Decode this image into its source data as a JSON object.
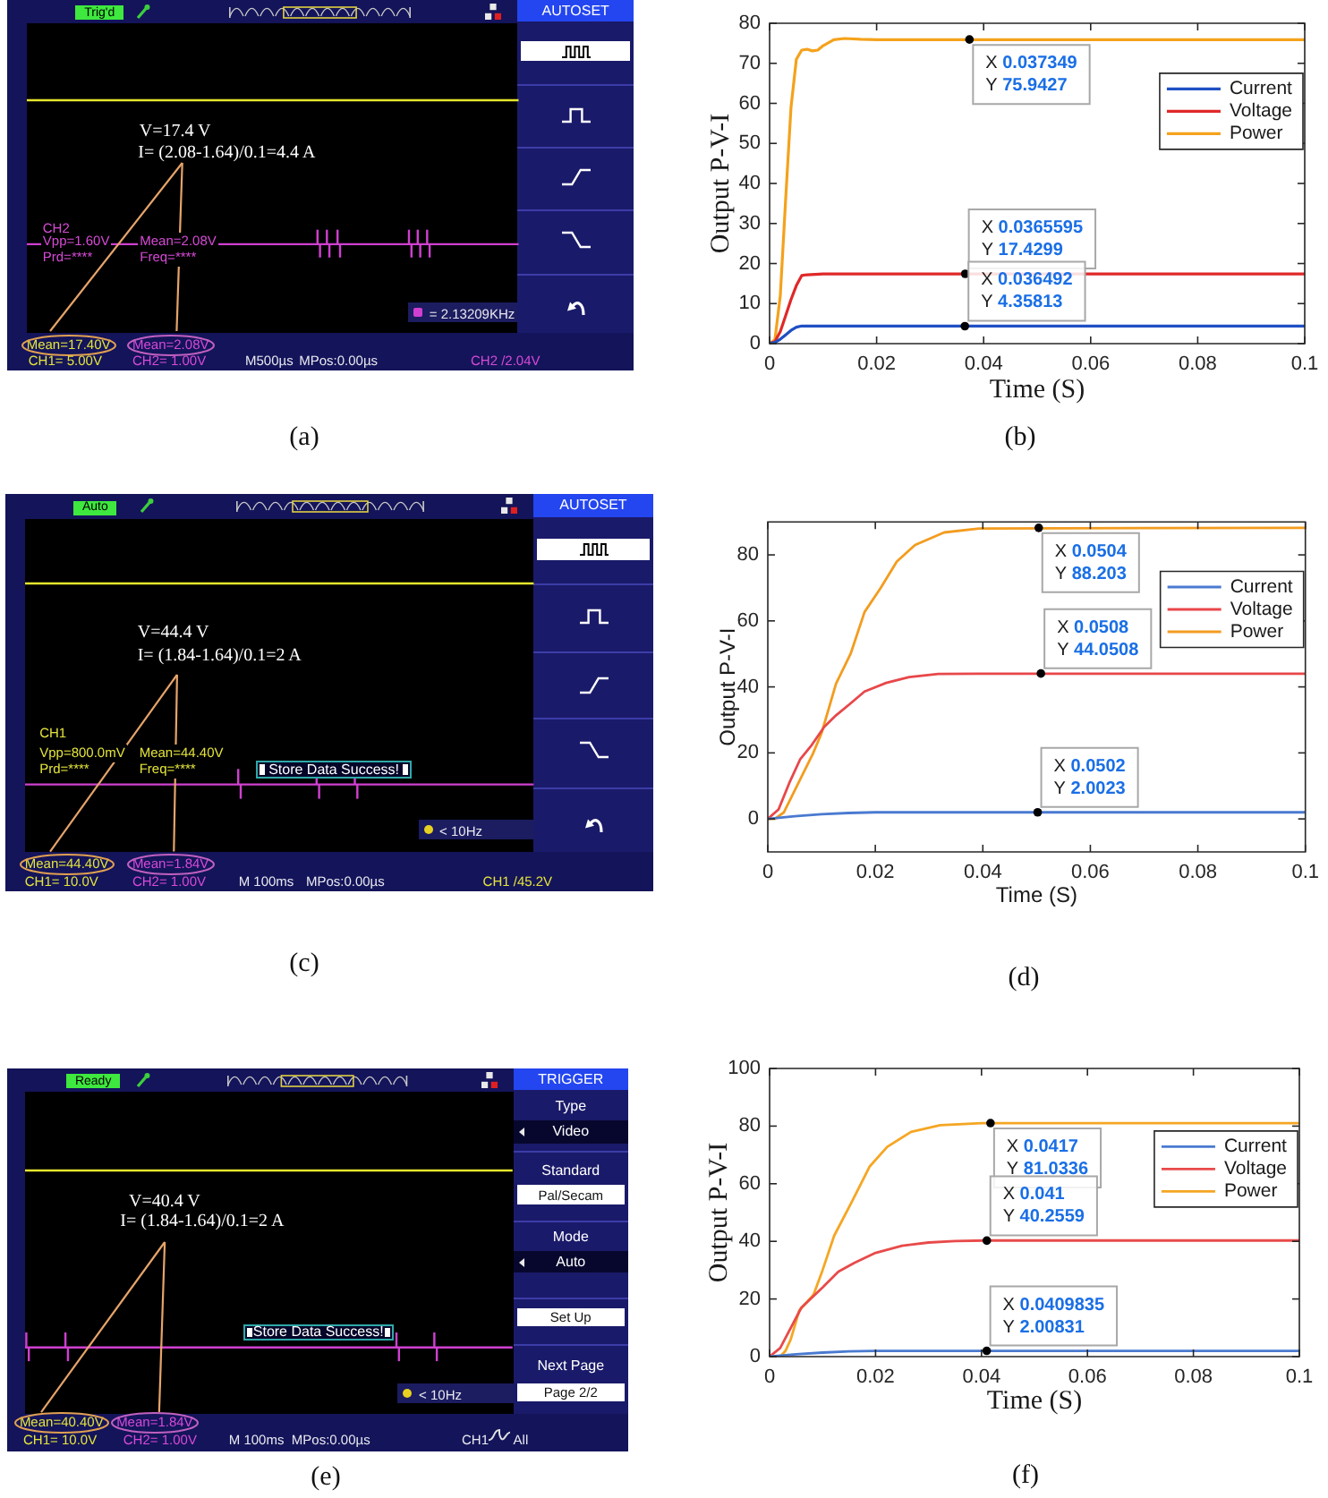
{
  "chart_data": [
    {
      "type": "other",
      "annotations": [
        "V=17.4 V",
        "I= (2.08-1.64)/0.1=4.4 A",
        "Trig'd",
        "AUTOSET",
        "CH2",
        "Vpp=1.60V",
        "Mean=2.08V",
        "Prd=****",
        "Freq=****",
        "= 2.13209KHz",
        "Mean=17.40V",
        "Mean=2.08V",
        "CH1= 5.00V",
        "CH2= 1.00V",
        "M500µs",
        "MPos:0.00µs",
        "CH2 /2.04V",
        "(a)"
      ]
    },
    {
      "type": "line",
      "xlabel": "Time (S)",
      "ylabel": "Output P-V-I",
      "xlim": [
        0,
        0.1
      ],
      "xticks": [
        0,
        0.02,
        0.04,
        0.06,
        0.08,
        0.1
      ],
      "ylim": [
        0,
        80
      ],
      "yticks": [
        0,
        10,
        20,
        30,
        40,
        50,
        60,
        70,
        80
      ],
      "legend": "top right",
      "series": [
        {
          "name": "Current",
          "color": "#1f4fc4",
          "x": [
            0,
            0.001,
            0.002,
            0.003,
            0.004,
            0.005,
            0.006,
            0.1
          ],
          "values": [
            0,
            0.3,
            1.1,
            2.2,
            3.3,
            4.1,
            4.4,
            4.4
          ]
        },
        {
          "name": "Voltage",
          "color": "#e02828",
          "x": [
            0,
            0.001,
            0.002,
            0.003,
            0.004,
            0.005,
            0.006,
            0.007,
            0.01,
            0.1
          ],
          "values": [
            0,
            0.5,
            3,
            7,
            11,
            14.5,
            17,
            17.2,
            17.4,
            17.4
          ]
        },
        {
          "name": "Power",
          "color": "#f4a21c",
          "x": [
            0,
            0.001,
            0.002,
            0.003,
            0.004,
            0.005,
            0.006,
            0.007,
            0.008,
            0.009,
            0.01,
            0.012,
            0.014,
            0.017,
            0.02,
            0.1
          ],
          "values": [
            0,
            1,
            12,
            36,
            59,
            71,
            73.3,
            73.5,
            73.1,
            73.3,
            74.4,
            75.9,
            76.2,
            76,
            75.9,
            75.9
          ]
        }
      ],
      "annotations": [
        {
          "text": "X 0.037349\nY 75.9427",
          "x": 0.037349,
          "y": 75.9427
        },
        {
          "text": "X 0.0365595\nY 17.4299",
          "x": 0.0365595,
          "y": 17.4299
        },
        {
          "text": "X 0.036492\nY 4.35813",
          "x": 0.036492,
          "y": 4.35813
        },
        "(b)"
      ]
    },
    {
      "type": "other",
      "annotations": [
        "V=44.4 V",
        "I= (1.84-1.64)/0.1=2 A",
        "Auto",
        "AUTOSET",
        "CH1",
        "Vpp=800.0mV",
        "Mean=44.40V",
        "Prd=****",
        "Freq=****",
        "Store Data Success!",
        "< 10Hz",
        "Mean=44.40V",
        "Mean=1.84V",
        "CH1= 10.0V",
        "CH2= 1.00V",
        "M 100ms",
        "MPos:0.00µs",
        "CH1 /45.2V",
        "(c)"
      ]
    },
    {
      "type": "line",
      "xlabel": "Time (S)",
      "ylabel": "Output P-V-I",
      "xlim": [
        0,
        0.1
      ],
      "xticks": [
        0,
        0.02,
        0.04,
        0.06,
        0.08,
        0.1
      ],
      "ylim": [
        -10,
        90
      ],
      "yticks": [
        0,
        20,
        40,
        60,
        80
      ],
      "legend": "top right",
      "series": [
        {
          "name": "Current",
          "color": "#4a7ad0",
          "x": [
            0,
            0.005,
            0.01,
            0.015,
            0.02,
            0.03,
            0.1
          ],
          "values": [
            0,
            0.8,
            1.4,
            1.8,
            2,
            2,
            2
          ]
        },
        {
          "name": "Voltage",
          "color": "#e8474a",
          "x": [
            0,
            0.002,
            0.004,
            0.006,
            0.008,
            0.0105,
            0.0127,
            0.0154,
            0.018,
            0.022,
            0.0263,
            0.0317,
            0.039,
            0.1
          ],
          "values": [
            0,
            2.9,
            10.9,
            18,
            22,
            27.9,
            31.4,
            35,
            38.6,
            41.2,
            43,
            43.9,
            44,
            44
          ]
        },
        {
          "name": "Power",
          "color": "#f39c1f",
          "x": [
            0,
            0.0013,
            0.003,
            0.0057,
            0.0084,
            0.01,
            0.0127,
            0.0154,
            0.018,
            0.021,
            0.024,
            0.0274,
            0.0328,
            0.0393,
            0.1
          ],
          "values": [
            0,
            0,
            2,
            10.9,
            19.8,
            26,
            41,
            50,
            62.7,
            70,
            78,
            83,
            86.8,
            88,
            88.2
          ]
        }
      ],
      "annotations": [
        {
          "text": "X 0.0504\nY 88.203",
          "x": 0.0504,
          "y": 88.203
        },
        {
          "text": "X 0.0508\nY 44.0508",
          "x": 0.0508,
          "y": 44.0508
        },
        {
          "text": "X 0.0502\nY 2.0023",
          "x": 0.0502,
          "y": 2.0023
        },
        "(d)"
      ]
    },
    {
      "type": "other",
      "annotations": [
        "V=40.4 V",
        "I= (1.84-1.64)/0.1=2 A",
        "Ready",
        "TRIGGER",
        "Type",
        "Video",
        "Standard",
        "Pal/Secam",
        "Mode",
        "Auto",
        "Set Up",
        "Next Page",
        "Page 2/2",
        "Store Data Success!",
        "< 10Hz",
        "Mean=40.40V",
        "Mean=1.84V",
        "CH1= 10.0V",
        "CH2= 1.00V",
        "M 100ms",
        "MPos:0.00µs",
        "CH1",
        "All",
        "(e)"
      ]
    },
    {
      "type": "line",
      "xlabel": "Time (S)",
      "ylabel": "Output P-V-I",
      "xlim": [
        0,
        0.1
      ],
      "xticks": [
        0,
        0.02,
        0.04,
        0.06,
        0.08,
        0.1
      ],
      "ylim": [
        0,
        100
      ],
      "yticks": [
        0,
        20,
        40,
        60,
        80,
        100
      ],
      "legend": "top right",
      "series": [
        {
          "name": "Current",
          "color": "#4a7ad0",
          "x": [
            0,
            0.005,
            0.01,
            0.015,
            0.02,
            0.03,
            0.1
          ],
          "values": [
            0,
            0.8,
            1.4,
            1.8,
            2,
            2,
            2
          ]
        },
        {
          "name": "Voltage",
          "color": "#e84a4a",
          "x": [
            0,
            0.002,
            0.004,
            0.006,
            0.008,
            0.01,
            0.013,
            0.016,
            0.02,
            0.025,
            0.03,
            0.035,
            0.041,
            0.1
          ],
          "values": [
            0,
            3,
            10,
            17,
            20.5,
            24,
            29.5,
            32.5,
            36,
            38.5,
            39.6,
            40.1,
            40.3,
            40.3
          ]
        },
        {
          "name": "Power",
          "color": "#f5a623",
          "x": [
            0,
            0.002,
            0.003,
            0.004,
            0.0056,
            0.0083,
            0.01,
            0.0122,
            0.0156,
            0.0189,
            0.0222,
            0.0267,
            0.0322,
            0.04,
            0.1
          ],
          "values": [
            0,
            0,
            2,
            6,
            16,
            21.5,
            30,
            42,
            54,
            66,
            72.8,
            78,
            80.3,
            81,
            81
          ]
        }
      ],
      "annotations": [
        {
          "text": "X 0.0417\nY 81.0336",
          "x": 0.0417,
          "y": 81.0336
        },
        {
          "text": "X 0.041\nY 40.2559",
          "x": 0.041,
          "y": 40.2559
        },
        {
          "text": "X 0.0409835\nY 2.00831",
          "x": 0.0409835,
          "y": 2.00831
        },
        "(f)"
      ]
    }
  ]
}
